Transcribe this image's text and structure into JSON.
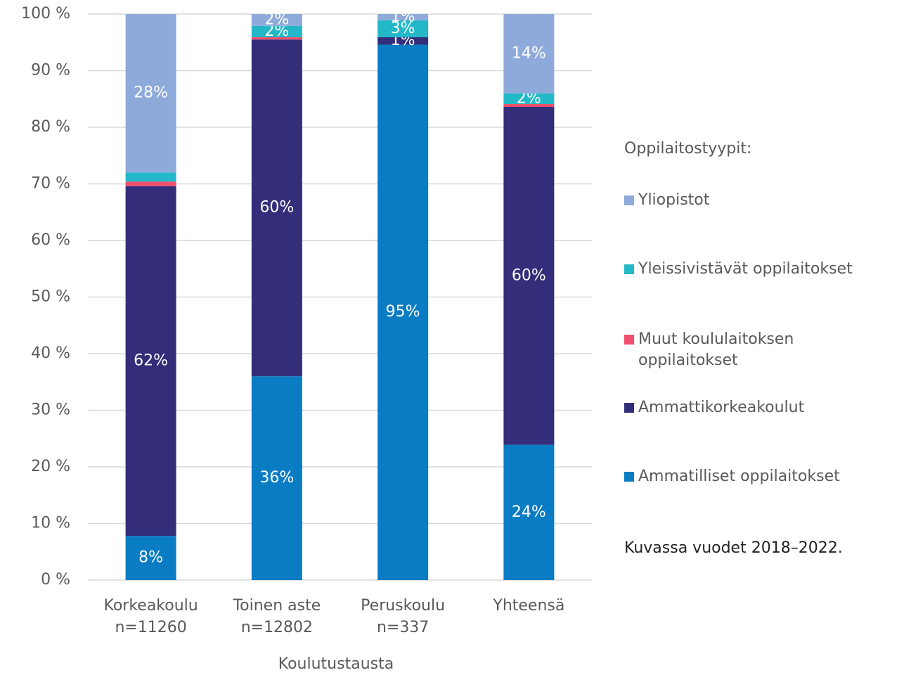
{
  "chart_data": {
    "type": "stacked_bar",
    "x_label": "Koulutustausta",
    "legend_title": "Oppilaitostyypit:",
    "note": "Kuvassa vuodet 2018–2022.",
    "categories": [
      [
        "Korkeakoulu",
        "n=11260"
      ],
      [
        "Toinen aste",
        "n=12802"
      ],
      [
        "Peruskoulu",
        "n=337"
      ],
      [
        "Yhteensä"
      ]
    ],
    "series": [
      {
        "name": "Ammatilliset oppilaitokset",
        "color": "#0a7cc4",
        "values": [
          7.8,
          36,
          94.6,
          23.9
        ],
        "value_labels": [
          "8%",
          "36%",
          "95%",
          "24%"
        ]
      },
      {
        "name": "Ammattikorkeakoulut",
        "color": "#332d7a",
        "values": [
          61.8,
          59.5,
          1.3,
          59.7
        ],
        "value_labels": [
          "62%",
          "60%",
          "1%",
          "60%"
        ]
      },
      {
        "name": "Muut koululaitoksen oppilaitokset",
        "color": "#f0506e",
        "values": [
          0.8,
          0.4,
          0,
          0.5
        ]
      },
      {
        "name": "Yleissivistävät oppilaitokset",
        "color": "#22b8c8",
        "values": [
          1.6,
          2,
          3,
          1.9
        ],
        "value_labels": [
          null,
          "2%",
          "3%",
          "2%"
        ]
      },
      {
        "name": "Yliopistot",
        "color": "#8eaadb",
        "values": [
          28,
          2.1,
          1.1,
          14
        ],
        "value_labels": [
          "28%",
          "2%",
          "1%",
          "14%"
        ]
      }
    ],
    "ylim": [
      0,
      100
    ],
    "yticks": [
      {
        "value": 0,
        "label": "0 %"
      },
      {
        "value": 10,
        "label": "10 %"
      },
      {
        "value": 20,
        "label": "20 %"
      },
      {
        "value": 30,
        "label": "30 %"
      },
      {
        "value": 40,
        "label": "40 %"
      },
      {
        "value": 50,
        "label": "50 %"
      },
      {
        "value": 60,
        "label": "60 %"
      },
      {
        "value": 70,
        "label": "70 %"
      },
      {
        "value": 80,
        "label": "80 %"
      },
      {
        "value": 90,
        "label": "90 %"
      },
      {
        "value": 100,
        "label": "100 %"
      }
    ],
    "grid": true
  }
}
